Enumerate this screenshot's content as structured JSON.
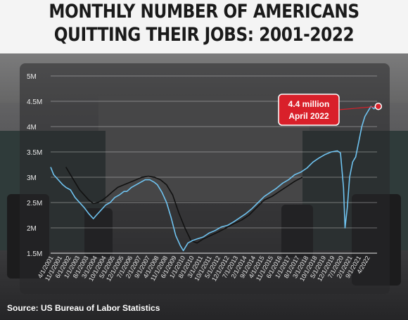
{
  "header": {
    "title_line1": "MONTHLY NUMBER OF AMERICANS",
    "title_line2": "QUITTING THEIR JOBS: 2001-2022"
  },
  "source": "Source: US Bureau of Labor Statistics",
  "colors": {
    "series_blue": "#6fc3f0",
    "series_black": "#111111",
    "callout_red": "#d9202a",
    "axis_text": "#e8e8e8",
    "grid": "#ffffff"
  },
  "chart_data": {
    "type": "line",
    "ylim": [
      1.5,
      5
    ],
    "y_ticks": [
      {
        "value": 1.5,
        "label": "1.5M"
      },
      {
        "value": 2,
        "label": "2M"
      },
      {
        "value": 2.5,
        "label": "2.5M"
      },
      {
        "value": 3,
        "label": "3M"
      },
      {
        "value": 3.5,
        "label": "3.5M"
      },
      {
        "value": 4,
        "label": "4M"
      },
      {
        "value": 4.5,
        "label": "4.5M"
      },
      {
        "value": 5,
        "label": "5M"
      }
    ],
    "x_tick_labels": [
      "4/1/2001",
      "11/1/2001",
      "6/1/2002",
      "1/1/2003",
      "8/1/2003",
      "3/1/2004",
      "10/1/2004",
      "5/1/2005",
      "12/1/2005",
      "7/1/2006",
      "2/1/2007",
      "9/1/2007",
      "4/1/2008",
      "11/1/2008",
      "6/1/2009",
      "1/1/2010",
      "8/1/2010",
      "3/1/2011",
      "10/1/2011",
      "5/1/2012",
      "12/1/2012",
      "7/1/2013",
      "2/1/2014",
      "9/1/2014",
      "4/1/2015",
      "11/1/2015",
      "6/1/2016",
      "1/1/2017",
      "8/1/2017",
      "3/1/2018",
      "10/1/2018",
      "5/1/2019",
      "12/1/2019",
      "7/1/2020",
      "2/1/2021",
      "9/1/2021",
      "4/2022"
    ],
    "grid": true,
    "series": [
      {
        "color": "#6fc3f0",
        "points": [
          [
            2001.0,
            3.2
          ],
          [
            2001.2,
            3.05
          ],
          [
            2001.5,
            2.95
          ],
          [
            2001.8,
            2.85
          ],
          [
            2002.0,
            2.8
          ],
          [
            2002.3,
            2.75
          ],
          [
            2002.6,
            2.6
          ],
          [
            2002.9,
            2.5
          ],
          [
            2003.2,
            2.4
          ],
          [
            2003.5,
            2.28
          ],
          [
            2003.8,
            2.18
          ],
          [
            2004.0,
            2.25
          ],
          [
            2004.3,
            2.35
          ],
          [
            2004.6,
            2.45
          ],
          [
            2004.9,
            2.5
          ],
          [
            2005.2,
            2.6
          ],
          [
            2005.5,
            2.65
          ],
          [
            2005.8,
            2.72
          ],
          [
            2006.0,
            2.72
          ],
          [
            2006.3,
            2.8
          ],
          [
            2006.6,
            2.85
          ],
          [
            2006.9,
            2.9
          ],
          [
            2007.2,
            2.95
          ],
          [
            2007.5,
            2.95
          ],
          [
            2007.8,
            2.9
          ],
          [
            2008.0,
            2.85
          ],
          [
            2008.3,
            2.7
          ],
          [
            2008.6,
            2.5
          ],
          [
            2008.9,
            2.2
          ],
          [
            2009.2,
            1.85
          ],
          [
            2009.5,
            1.65
          ],
          [
            2009.7,
            1.55
          ],
          [
            2010.0,
            1.7
          ],
          [
            2010.3,
            1.75
          ],
          [
            2010.6,
            1.78
          ],
          [
            2011.0,
            1.82
          ],
          [
            2011.4,
            1.9
          ],
          [
            2011.8,
            1.95
          ],
          [
            2012.2,
            2.02
          ],
          [
            2012.6,
            2.05
          ],
          [
            2013.0,
            2.12
          ],
          [
            2013.4,
            2.2
          ],
          [
            2013.8,
            2.28
          ],
          [
            2014.2,
            2.38
          ],
          [
            2014.6,
            2.5
          ],
          [
            2015.0,
            2.62
          ],
          [
            2015.4,
            2.7
          ],
          [
            2015.8,
            2.78
          ],
          [
            2016.2,
            2.88
          ],
          [
            2016.6,
            2.95
          ],
          [
            2017.0,
            3.05
          ],
          [
            2017.4,
            3.1
          ],
          [
            2017.8,
            3.18
          ],
          [
            2018.2,
            3.3
          ],
          [
            2018.6,
            3.38
          ],
          [
            2019.0,
            3.45
          ],
          [
            2019.4,
            3.5
          ],
          [
            2019.8,
            3.52
          ],
          [
            2020.0,
            3.48
          ],
          [
            2020.2,
            2.8
          ],
          [
            2020.3,
            2.0
          ],
          [
            2020.45,
            2.4
          ],
          [
            2020.6,
            3.0
          ],
          [
            2020.8,
            3.3
          ],
          [
            2021.0,
            3.4
          ],
          [
            2021.2,
            3.7
          ],
          [
            2021.4,
            4.0
          ],
          [
            2021.6,
            4.2
          ],
          [
            2021.8,
            4.3
          ],
          [
            2022.0,
            4.4
          ],
          [
            2022.2,
            4.35
          ],
          [
            2022.3,
            4.4
          ]
        ]
      },
      {
        "color": "#111111",
        "points": [
          [
            2002.0,
            3.2
          ],
          [
            2002.3,
            3.05
          ],
          [
            2002.6,
            2.9
          ],
          [
            2002.9,
            2.75
          ],
          [
            2003.2,
            2.65
          ],
          [
            2003.5,
            2.55
          ],
          [
            2003.8,
            2.48
          ],
          [
            2004.1,
            2.5
          ],
          [
            2004.4,
            2.55
          ],
          [
            2004.7,
            2.62
          ],
          [
            2005.0,
            2.7
          ],
          [
            2005.4,
            2.8
          ],
          [
            2005.8,
            2.85
          ],
          [
            2006.2,
            2.9
          ],
          [
            2006.6,
            2.95
          ],
          [
            2007.0,
            3.0
          ],
          [
            2007.4,
            3.02
          ],
          [
            2007.8,
            3.0
          ],
          [
            2008.2,
            2.95
          ],
          [
            2008.6,
            2.85
          ],
          [
            2009.0,
            2.65
          ],
          [
            2009.4,
            2.3
          ],
          [
            2009.8,
            2.0
          ],
          [
            2010.2,
            1.75
          ],
          [
            2010.6,
            1.7
          ],
          [
            2011.0,
            1.78
          ],
          [
            2011.5,
            1.85
          ],
          [
            2012.0,
            1.92
          ],
          [
            2012.5,
            2.0
          ],
          [
            2013.0,
            2.08
          ],
          [
            2013.5,
            2.15
          ],
          [
            2014.0,
            2.25
          ],
          [
            2014.5,
            2.4
          ],
          [
            2015.0,
            2.55
          ],
          [
            2015.5,
            2.62
          ],
          [
            2016.0,
            2.72
          ],
          [
            2016.5,
            2.82
          ],
          [
            2017.0,
            2.92
          ],
          [
            2017.5,
            3.0
          ]
        ]
      }
    ],
    "annotation": {
      "line1": "4.4 million",
      "line2": "April 2022",
      "point": [
        2022.3,
        4.4
      ]
    }
  }
}
